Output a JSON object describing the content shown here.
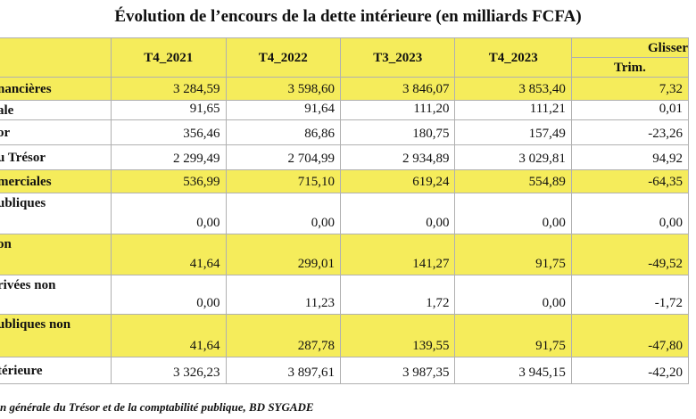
{
  "title": "Évolution de l’encours de la dette intérieure (en milliards FCFA)",
  "headers": {
    "c1": "T4_2021",
    "c2": "T4_2022",
    "c3": "T3_2023",
    "c4": "T4_2023",
    "glisse": "Glisser",
    "trim": "Trim."
  },
  "rows": [
    {
      "label": "nancières",
      "v1": "3 284,59",
      "v2": "3 598,60",
      "v3": "3 846,07",
      "v4": "3 853,40",
      "v5": "7,32"
    },
    {
      "label": "ale",
      "v1": "91,65",
      "v2": "91,64",
      "v3": "111,20",
      "v4": "111,21",
      "v5": "0,01"
    },
    {
      "label": "or",
      "v1": "356,46",
      "v2": "86,86",
      "v3": "180,75",
      "v4": "157,49",
      "v5": "-23,26"
    },
    {
      "label": "u Trésor",
      "v1": "2 299,49",
      "v2": "2 704,99",
      "v3": "2 934,89",
      "v4": "3 029,81",
      "v5": "94,92"
    },
    {
      "label": "merciales",
      "v1": "536,99",
      "v2": "715,10",
      "v3": "619,24",
      "v4": "554,89",
      "v5": "-64,35"
    },
    {
      "label": "ubliques",
      "v1": "0,00",
      "v2": "0,00",
      "v3": "0,00",
      "v4": "0,00",
      "v5": "0,00"
    },
    {
      "label": "on",
      "v1": "41,64",
      "v2": "299,01",
      "v3": "141,27",
      "v4": "91,75",
      "v5": "-49,52"
    },
    {
      "label": "rivées non",
      "v1": "0,00",
      "v2": "11,23",
      "v3": "1,72",
      "v4": "0,00",
      "v5": "-1,72"
    },
    {
      "label": "ubliques non",
      "v1": "41,64",
      "v2": "287,78",
      "v3": "139,55",
      "v4": "91,75",
      "v5": "-47,80"
    },
    {
      "label": "térieure",
      "v1": "3 326,23",
      "v2": "3 897,61",
      "v3": "3 987,35",
      "v4": "3 945,15",
      "v5": "-42,20"
    }
  ],
  "source": "n générale du Trésor et de la comptabilité publique, BD SYGADE"
}
